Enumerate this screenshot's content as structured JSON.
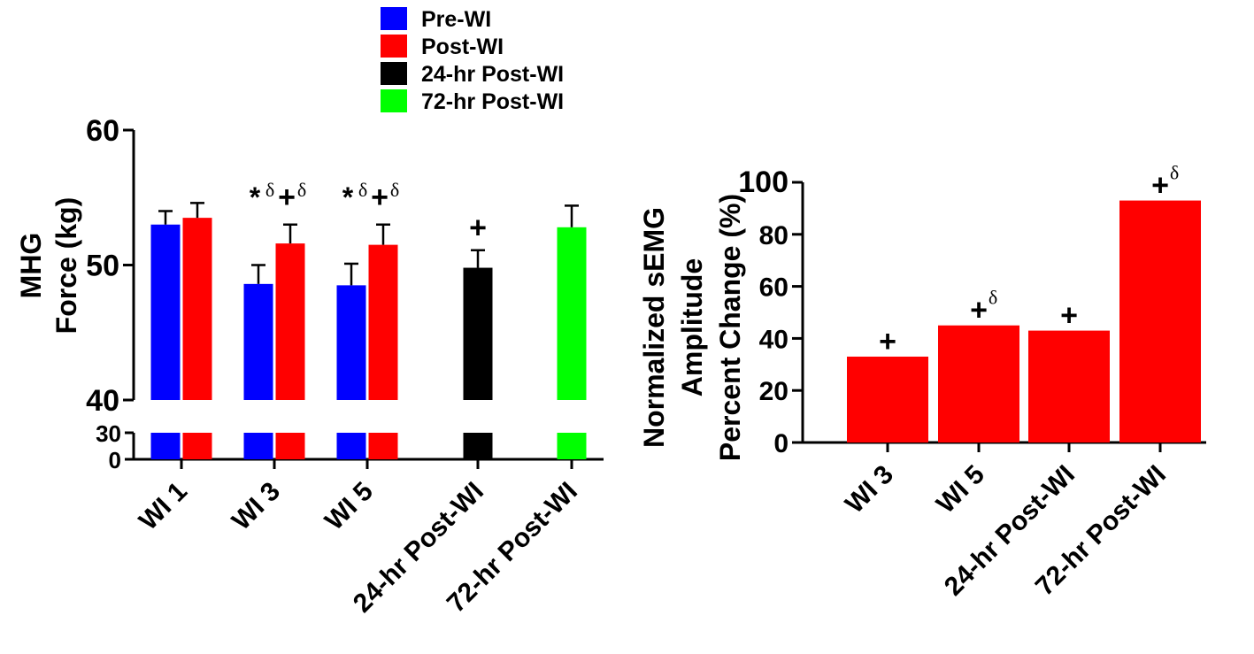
{
  "colors": {
    "pre_wi": "#0000ff",
    "post_wi": "#ff0000",
    "hr24_post_wi": "#000000",
    "hr72_post_wi": "#00ff00",
    "axis": "#000000"
  },
  "chart_data": [
    {
      "type": "bar",
      "ylabel": [
        "MHG",
        "Force (kg)"
      ],
      "xlabel": "",
      "ylim": [
        0,
        60
      ],
      "axis_break": {
        "lower_range": [
          0,
          30
        ],
        "upper_range": [
          40,
          60
        ]
      },
      "yticks_upper": [
        "60",
        "50",
        "40"
      ],
      "yticks_lower": [
        "30",
        "0"
      ],
      "categories": [
        "WI 1",
        "WI 3",
        "WI 5",
        "24-hr Post-WI",
        "72-hr Post-WI"
      ],
      "legend": {
        "position": "top-left",
        "entries": [
          {
            "name": "Pre-WI",
            "color": "#0000ff"
          },
          {
            "name": "Post-WI",
            "color": "#ff0000"
          },
          {
            "name": "24-hr  Post-WI",
            "color": "#000000"
          },
          {
            "name": "72-hr Post-WI",
            "color": "#00ff00"
          }
        ]
      },
      "bars": [
        {
          "category": 0,
          "slot": -1,
          "series": "Pre-WI",
          "color": "#0000ff",
          "value": 53.0,
          "error": 1.0,
          "sig": []
        },
        {
          "category": 0,
          "slot": 1,
          "series": "Post-WI",
          "color": "#ff0000",
          "value": 53.5,
          "error": 1.1,
          "sig": []
        },
        {
          "category": 1,
          "slot": -1,
          "series": "Pre-WI",
          "color": "#0000ff",
          "value": 48.6,
          "error": 1.4,
          "sig": []
        },
        {
          "category": 1,
          "slot": 1,
          "series": "Post-WI",
          "color": "#ff0000",
          "value": 51.6,
          "error": 1.4,
          "sig": []
        },
        {
          "category": 2,
          "slot": -1,
          "series": "Pre-WI",
          "color": "#0000ff",
          "value": 48.5,
          "error": 1.6,
          "sig": []
        },
        {
          "category": 2,
          "slot": 1,
          "series": "Post-WI",
          "color": "#ff0000",
          "value": 51.5,
          "error": 1.5,
          "sig": []
        },
        {
          "category": 3,
          "slot": 0,
          "series": "24-hr  Post-WI",
          "color": "#000000",
          "value": 49.8,
          "error": 1.3,
          "sig": [
            "+"
          ]
        },
        {
          "category": 4,
          "slot": 0,
          "series": "72-hr Post-WI",
          "color": "#00ff00",
          "value": 52.8,
          "error": 1.6,
          "sig": []
        }
      ],
      "annotations": [
        {
          "category": 1,
          "slot": -1,
          "level": 55.2,
          "symbols": [
            "*",
            "δ"
          ]
        },
        {
          "category": 1,
          "slot": 1,
          "level": 55.2,
          "symbols": [
            "+",
            "δ"
          ]
        },
        {
          "category": 2,
          "slot": -1,
          "level": 55.2,
          "symbols": [
            "*",
            "δ"
          ]
        },
        {
          "category": 2,
          "slot": 1,
          "level": 55.2,
          "symbols": [
            "+",
            "δ"
          ]
        }
      ]
    },
    {
      "type": "bar",
      "ylabel": [
        "Normalized sEMG",
        "Amplitude",
        "Percent Change (%)"
      ],
      "xlabel": "",
      "ylim": [
        0,
        100
      ],
      "yticks": [
        "0",
        "20",
        "40",
        "60",
        "80",
        "100"
      ],
      "categories": [
        "WI 3",
        "WI 5",
        "24-hr Post-WI",
        "72-hr Post-WI"
      ],
      "series": [
        {
          "name": "Post-WI",
          "color": "#ff0000",
          "values": [
            33,
            45,
            43,
            93
          ]
        }
      ],
      "annotations": [
        {
          "category": 0,
          "symbols": [
            "+"
          ]
        },
        {
          "category": 1,
          "symbols": [
            "+",
            "δ"
          ]
        },
        {
          "category": 2,
          "symbols": [
            "+"
          ]
        },
        {
          "category": 3,
          "symbols": [
            "+",
            "δ"
          ]
        }
      ]
    }
  ]
}
